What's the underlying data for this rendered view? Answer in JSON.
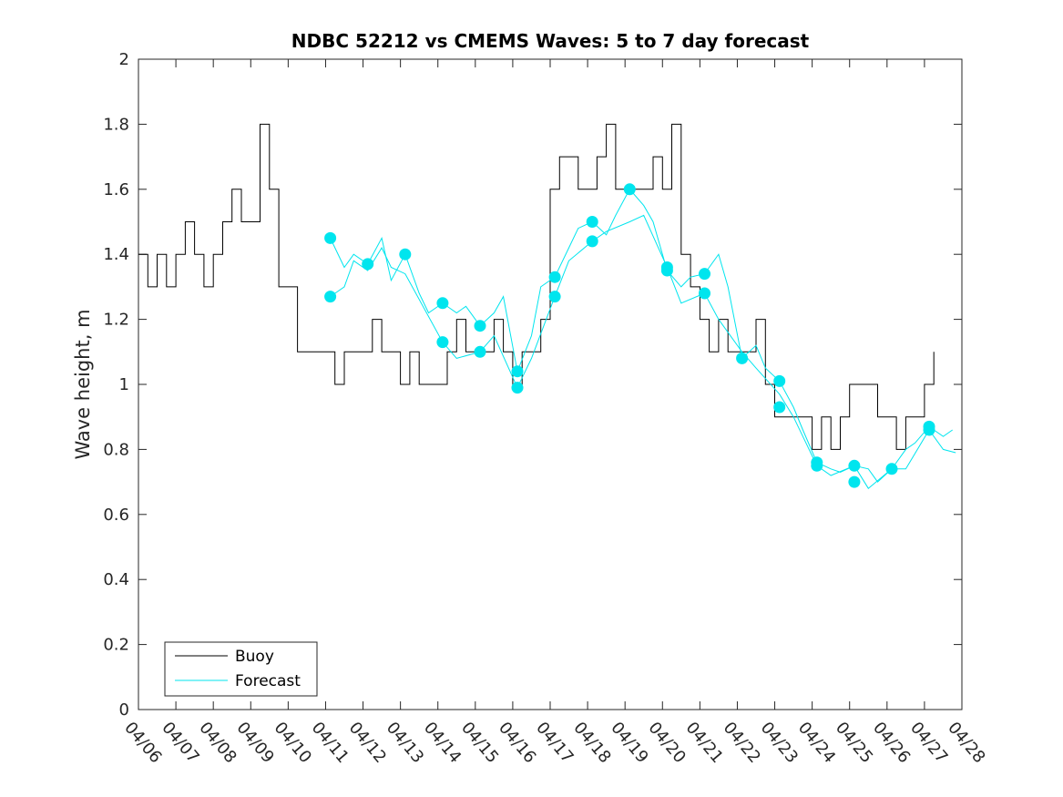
{
  "colors": {
    "buoy": "#000000",
    "forecast": "#00e5ee",
    "axes": "#262626"
  },
  "chart_data": {
    "type": "line",
    "title": "NDBC 52212 vs CMEMS Waves: 5 to 7 day forecast",
    "xlabel": "",
    "ylabel": "Wave height, m",
    "xlim": [
      "04/06",
      "04/28"
    ],
    "ylim": [
      0,
      2
    ],
    "x_tick_labels": [
      "04/06",
      "04/07",
      "04/08",
      "04/09",
      "04/10",
      "04/11",
      "04/12",
      "04/13",
      "04/14",
      "04/15",
      "04/16",
      "04/17",
      "04/18",
      "04/19",
      "04/20",
      "04/21",
      "04/22",
      "04/23",
      "04/24",
      "04/25",
      "04/26",
      "04/27",
      "04/28"
    ],
    "y_ticks": [
      0,
      0.2,
      0.4,
      0.6,
      0.8,
      1,
      1.2,
      1.4,
      1.6,
      1.8,
      2
    ],
    "y_tick_labels": [
      "0",
      "0.2",
      "0.4",
      "0.6",
      "0.8",
      "1",
      "1.2",
      "1.4",
      "1.6",
      "1.8",
      "2"
    ],
    "grid": false,
    "legend_position": "bottom-left",
    "legend": [
      "Buoy",
      "Forecast"
    ],
    "series": [
      {
        "name": "Buoy",
        "style": "line",
        "x": [
          "04/06 00:00",
          "04/06 06:00",
          "04/06 12:00",
          "04/06 18:00",
          "04/07 00:00",
          "04/07 06:00",
          "04/07 12:00",
          "04/07 18:00",
          "04/08 00:00",
          "04/08 06:00",
          "04/08 12:00",
          "04/08 18:00",
          "04/09 00:00",
          "04/09 06:00",
          "04/09 12:00",
          "04/09 18:00",
          "04/10 00:00",
          "04/10 06:00",
          "04/10 12:00",
          "04/10 18:00",
          "04/11 00:00",
          "04/11 06:00",
          "04/11 12:00",
          "04/11 18:00",
          "04/12 00:00",
          "04/12 06:00",
          "04/12 12:00",
          "04/12 18:00",
          "04/13 00:00",
          "04/13 06:00",
          "04/13 12:00",
          "04/13 18:00",
          "04/14 00:00",
          "04/14 06:00",
          "04/14 12:00",
          "04/14 18:00",
          "04/15 00:00",
          "04/15 06:00",
          "04/15 12:00",
          "04/15 18:00",
          "04/16 00:00",
          "04/16 06:00",
          "04/16 12:00",
          "04/16 18:00",
          "04/17 00:00",
          "04/17 06:00",
          "04/17 12:00",
          "04/17 18:00",
          "04/18 00:00",
          "04/18 06:00",
          "04/18 12:00",
          "04/18 18:00",
          "04/19 00:00",
          "04/19 06:00",
          "04/19 12:00",
          "04/19 18:00",
          "04/20 00:00",
          "04/20 06:00",
          "04/20 12:00",
          "04/20 18:00",
          "04/21 00:00",
          "04/21 06:00",
          "04/21 12:00",
          "04/21 18:00",
          "04/22 00:00",
          "04/22 06:00",
          "04/22 12:00",
          "04/22 18:00",
          "04/23 00:00",
          "04/23 06:00",
          "04/23 12:00",
          "04/23 18:00",
          "04/24 00:00",
          "04/24 06:00",
          "04/24 12:00",
          "04/24 18:00",
          "04/25 00:00",
          "04/25 06:00",
          "04/25 12:00",
          "04/25 18:00",
          "04/26 00:00",
          "04/26 06:00",
          "04/26 12:00",
          "04/26 18:00",
          "04/27 00:00",
          "04/27 06:00"
        ],
        "y": [
          1.4,
          1.3,
          1.4,
          1.3,
          1.4,
          1.5,
          1.4,
          1.3,
          1.4,
          1.5,
          1.6,
          1.5,
          1.5,
          1.8,
          1.6,
          1.3,
          1.3,
          1.1,
          1.1,
          1.1,
          1.1,
          1.0,
          1.1,
          1.1,
          1.1,
          1.2,
          1.1,
          1.1,
          1.0,
          1.1,
          1.0,
          1.0,
          1.0,
          1.1,
          1.2,
          1.1,
          1.1,
          1.1,
          1.2,
          1.1,
          1.0,
          1.1,
          1.1,
          1.2,
          1.6,
          1.7,
          1.7,
          1.6,
          1.6,
          1.7,
          1.8,
          1.6,
          1.6,
          1.6,
          1.6,
          1.7,
          1.6,
          1.8,
          1.4,
          1.3,
          1.2,
          1.1,
          1.2,
          1.1,
          1.1,
          1.1,
          1.2,
          1.0,
          0.9,
          0.9,
          0.9,
          0.9,
          0.8,
          0.9,
          0.8,
          0.9,
          1.0,
          1.0,
          1.0,
          0.9,
          0.9,
          0.8,
          0.9,
          0.9,
          1.0,
          1.1
        ]
      },
      {
        "name": "Forecast",
        "style": "line",
        "x": [
          "04/11 03:00",
          "04/11 12:00",
          "04/11 18:00",
          "04/12 03:00",
          "04/12 12:00",
          "04/12 18:00",
          "04/13 03:00",
          "04/13 12:00",
          "04/13 18:00",
          "04/14 03:00",
          "04/14 12:00",
          "04/14 18:00",
          "04/15 03:00",
          "04/15 12:00",
          "04/15 18:00",
          "04/16 03:00",
          "04/16 12:00",
          "04/16 18:00",
          "04/17 03:00",
          "04/17 12:00",
          "04/17 18:00",
          "04/18 03:00",
          "04/18 12:00",
          "04/18 18:00",
          "04/19 03:00",
          "04/19 12:00",
          "04/19 18:00",
          "04/20 03:00",
          "04/20 12:00",
          "04/20 18:00",
          "04/21 03:00",
          "04/21 12:00",
          "04/21 18:00",
          "04/22 03:00",
          "04/22 12:00",
          "04/22 18:00",
          "04/23 03:00",
          "04/23 12:00",
          "04/23 18:00",
          "04/24 03:00",
          "04/24 12:00",
          "04/24 18:00",
          "04/25 03:00",
          "04/25 12:00",
          "04/25 18:00",
          "04/26 03:00",
          "04/26 12:00",
          "04/26 18:00",
          "04/27 03:00",
          "04/27 12:00",
          "04/27 18:00"
        ],
        "y": [
          1.45,
          1.36,
          1.4,
          1.37,
          1.45,
          1.32,
          1.4,
          1.28,
          1.22,
          1.25,
          1.22,
          1.24,
          1.18,
          1.22,
          1.27,
          1.04,
          1.15,
          1.3,
          1.33,
          1.42,
          1.48,
          1.5,
          1.46,
          1.52,
          1.6,
          1.55,
          1.5,
          1.35,
          1.3,
          1.33,
          1.34,
          1.4,
          1.3,
          1.08,
          1.12,
          1.05,
          1.01,
          0.93,
          0.86,
          0.76,
          0.74,
          0.73,
          0.75,
          0.74,
          0.7,
          0.74,
          0.8,
          0.82,
          0.87,
          0.84,
          0.86
        ]
      },
      {
        "name": "",
        "style": "line",
        "x": [
          "04/11 03:00",
          "04/11 12:00",
          "04/11 18:00",
          "04/12 03:00",
          "04/12 12:00",
          "04/12 18:00",
          "04/13 03:00",
          "04/14 03:00",
          "04/14 12:00",
          "04/15 03:00",
          "04/15 12:00",
          "04/16 03:00",
          "04/16 12:00",
          "04/17 03:00",
          "04/17 12:00",
          "04/18 03:00",
          "04/18 12:00",
          "04/19 03:00",
          "04/19 12:00",
          "04/20 03:00",
          "04/20 12:00",
          "04/21 03:00",
          "04/21 12:00",
          "04/22 03:00",
          "04/22 12:00",
          "04/23 03:00",
          "04/23 12:00",
          "04/24 03:00",
          "04/24 12:00",
          "04/25 03:00",
          "04/25 12:00",
          "04/26 03:00",
          "04/26 12:00",
          "04/27 03:00",
          "04/27 12:00",
          "04/27 20:00"
        ],
        "y": [
          1.27,
          1.3,
          1.38,
          1.35,
          1.42,
          1.36,
          1.34,
          1.13,
          1.08,
          1.1,
          1.15,
          0.99,
          1.08,
          1.27,
          1.38,
          1.44,
          1.47,
          1.5,
          1.52,
          1.36,
          1.25,
          1.28,
          1.2,
          1.1,
          1.05,
          0.97,
          0.9,
          0.75,
          0.72,
          0.75,
          0.68,
          0.74,
          0.74,
          0.86,
          0.8,
          0.79
        ]
      }
    ],
    "markers": {
      "x": [
        "04/11 03:00",
        "04/11 03:00",
        "04/12 03:00",
        "04/13 03:00",
        "04/14 03:00",
        "04/14 03:00",
        "04/15 03:00",
        "04/15 03:00",
        "04/16 03:00",
        "04/16 03:00",
        "04/17 03:00",
        "04/17 03:00",
        "04/18 03:00",
        "04/18 03:00",
        "04/19 03:00",
        "04/20 03:00",
        "04/20 03:00",
        "04/21 03:00",
        "04/21 03:00",
        "04/22 03:00",
        "04/23 03:00",
        "04/23 03:00",
        "04/24 03:00",
        "04/24 03:00",
        "04/25 03:00",
        "04/25 03:00",
        "04/26 03:00",
        "04/27 03:00",
        "04/27 03:00"
      ],
      "y": [
        1.45,
        1.27,
        1.37,
        1.4,
        1.25,
        1.13,
        1.18,
        1.1,
        1.04,
        0.99,
        1.33,
        1.27,
        1.5,
        1.44,
        1.6,
        1.36,
        1.35,
        1.34,
        1.28,
        1.08,
        1.01,
        0.93,
        0.76,
        0.75,
        0.75,
        0.7,
        0.74,
        0.87,
        0.86
      ]
    }
  }
}
